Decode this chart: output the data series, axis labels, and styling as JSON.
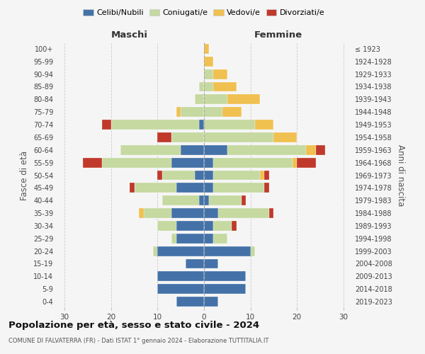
{
  "age_groups": [
    "0-4",
    "5-9",
    "10-14",
    "15-19",
    "20-24",
    "25-29",
    "30-34",
    "35-39",
    "40-44",
    "45-49",
    "50-54",
    "55-59",
    "60-64",
    "65-69",
    "70-74",
    "75-79",
    "80-84",
    "85-89",
    "90-94",
    "95-99",
    "100+"
  ],
  "birth_years": [
    "2019-2023",
    "2014-2018",
    "2009-2013",
    "2004-2008",
    "1999-2003",
    "1994-1998",
    "1989-1993",
    "1984-1988",
    "1979-1983",
    "1974-1978",
    "1969-1973",
    "1964-1968",
    "1959-1963",
    "1954-1958",
    "1949-1953",
    "1944-1948",
    "1939-1943",
    "1934-1938",
    "1929-1933",
    "1924-1928",
    "≤ 1923"
  ],
  "male": {
    "celibi": [
      6,
      10,
      10,
      4,
      10,
      6,
      6,
      7,
      1,
      6,
      2,
      7,
      5,
      0,
      1,
      0,
      0,
      0,
      0,
      0,
      0
    ],
    "coniugati": [
      0,
      0,
      0,
      0,
      1,
      1,
      4,
      6,
      8,
      9,
      7,
      15,
      13,
      7,
      19,
      5,
      2,
      1,
      0,
      0,
      0
    ],
    "vedovi": [
      0,
      0,
      0,
      0,
      0,
      0,
      0,
      1,
      0,
      0,
      0,
      0,
      0,
      0,
      0,
      1,
      0,
      0,
      0,
      0,
      0
    ],
    "divorziati": [
      0,
      0,
      0,
      0,
      0,
      0,
      0,
      0,
      0,
      1,
      1,
      4,
      0,
      3,
      2,
      0,
      0,
      0,
      0,
      0,
      0
    ]
  },
  "female": {
    "nubili": [
      3,
      9,
      9,
      3,
      10,
      2,
      2,
      3,
      1,
      2,
      2,
      2,
      5,
      0,
      0,
      0,
      0,
      0,
      0,
      0,
      0
    ],
    "coniugate": [
      0,
      0,
      0,
      0,
      1,
      3,
      4,
      11,
      7,
      11,
      10,
      17,
      17,
      15,
      11,
      4,
      5,
      2,
      2,
      0,
      0
    ],
    "vedove": [
      0,
      0,
      0,
      0,
      0,
      0,
      0,
      0,
      0,
      0,
      1,
      1,
      2,
      5,
      4,
      4,
      7,
      5,
      3,
      2,
      1
    ],
    "divorziate": [
      0,
      0,
      0,
      0,
      0,
      0,
      1,
      1,
      1,
      1,
      1,
      4,
      2,
      0,
      0,
      0,
      0,
      0,
      0,
      0,
      0
    ]
  },
  "colors": {
    "celibi": "#4472a8",
    "coniugati": "#c5d9a0",
    "vedovi": "#f0c050",
    "divorziati": "#c0392b"
  },
  "xlim": 32,
  "title": "Popolazione per età, sesso e stato civile - 2024",
  "subtitle": "COMUNE DI FALVATERRA (FR) - Dati ISTAT 1° gennaio 2024 - Elaborazione TUTTITALIA.IT",
  "ylabel_left": "Fasce di età",
  "ylabel_right": "Anni di nascita",
  "xlabel_male": "Maschi",
  "xlabel_female": "Femmine",
  "bg_color": "#f5f5f5"
}
